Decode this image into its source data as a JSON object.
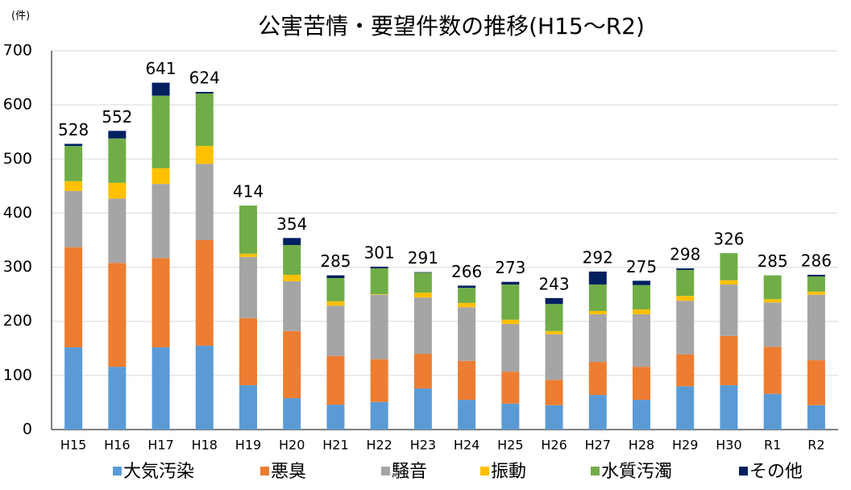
{
  "chart_data": {
    "type": "stacked_bar",
    "title": "公害苦情・要望件数の推移(H15～R2)",
    "y_unit_label": "(件)",
    "categories": [
      "H15",
      "H16",
      "H17",
      "H18",
      "H19",
      "H20",
      "H21",
      "H22",
      "H23",
      "H24",
      "H25",
      "H26",
      "H27",
      "H28",
      "H29",
      "H30",
      "R1",
      "R2"
    ],
    "series": [
      {
        "name": "大気汚染",
        "color": "#5b9bd5",
        "values": [
          152,
          116,
          152,
          155,
          82,
          58,
          46,
          51,
          76,
          55,
          48,
          45,
          64,
          55,
          80,
          82,
          66,
          45
        ]
      },
      {
        "name": "悪臭",
        "color": "#ed7d31",
        "values": [
          185,
          192,
          165,
          195,
          124,
          124,
          90,
          79,
          64,
          72,
          59,
          47,
          61,
          61,
          59,
          91,
          87,
          83
        ]
      },
      {
        "name": "騒音",
        "color": "#a5a5a5",
        "values": [
          104,
          119,
          137,
          141,
          113,
          92,
          93,
          119,
          104,
          99,
          88,
          84,
          88,
          97,
          99,
          95,
          82,
          121
        ]
      },
      {
        "name": "振動",
        "color": "#ffc000",
        "values": [
          18,
          29,
          29,
          33,
          6,
          12,
          8,
          1,
          9,
          8,
          8,
          6,
          6,
          9,
          9,
          8,
          6,
          6
        ]
      },
      {
        "name": "水質汚濁",
        "color": "#70ad47",
        "values": [
          65,
          82,
          134,
          97,
          89,
          55,
          43,
          48,
          37,
          28,
          65,
          50,
          49,
          45,
          48,
          50,
          44,
          28
        ]
      },
      {
        "name": "その他",
        "color": "#002060",
        "values": [
          4,
          14,
          24,
          3,
          0,
          13,
          5,
          3,
          1,
          4,
          5,
          11,
          24,
          8,
          3,
          0,
          0,
          3
        ]
      }
    ],
    "totals": [
      528,
      552,
      641,
      624,
      414,
      354,
      285,
      301,
      291,
      266,
      273,
      243,
      292,
      275,
      298,
      326,
      285,
      286
    ],
    "ylim": [
      0,
      700
    ],
    "yticks": [
      0,
      100,
      200,
      300,
      400,
      500,
      600,
      700
    ],
    "grid": true
  }
}
